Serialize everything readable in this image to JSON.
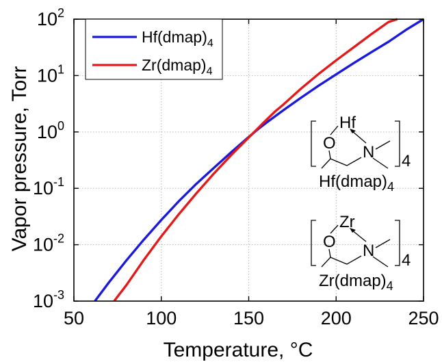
{
  "chart_data": {
    "type": "line",
    "xlabel": "Temperature, ",
    "xlabel_unit": "°C",
    "ylabel": "Vapor pressure, Torr",
    "xlim": [
      50,
      250
    ],
    "ylim": [
      0.001,
      100
    ],
    "yscale": "log",
    "grid": true,
    "legend_position": "top-left",
    "x_ticks": [
      "50",
      "100",
      "150",
      "200",
      "250"
    ],
    "y_ticks": [
      {
        "value": 0.001,
        "base": "10",
        "exp": "-3"
      },
      {
        "value": 0.01,
        "base": "10",
        "exp": "-2"
      },
      {
        "value": 0.1,
        "base": "10",
        "exp": "-1"
      },
      {
        "value": 1,
        "base": "10",
        "exp": "0"
      },
      {
        "value": 10,
        "base": "10",
        "exp": "1"
      },
      {
        "value": 100,
        "base": "10",
        "exp": "2"
      }
    ],
    "series": [
      {
        "name": "Hf(dmap)",
        "name_sub": "4",
        "color": "#1a1adc",
        "x": [
          62,
          70,
          80,
          90,
          100,
          110,
          120,
          130,
          140,
          150,
          155,
          160,
          170,
          180,
          190,
          200,
          210,
          220,
          230,
          240,
          250
        ],
        "y": [
          0.001,
          0.00214,
          0.00525,
          0.0123,
          0.0275,
          0.0589,
          0.12,
          0.229,
          0.437,
          0.813,
          1.1,
          1.45,
          2.45,
          4.07,
          6.61,
          10.5,
          16.6,
          25.7,
          39.8,
          64.6,
          100
        ]
      },
      {
        "name": "Zr(dmap)",
        "name_sub": "4",
        "color": "#e41a1a",
        "x": [
          73,
          80,
          90,
          100,
          110,
          120,
          130,
          140,
          150,
          158,
          165,
          170,
          180,
          190,
          200,
          210,
          220,
          230,
          235
        ],
        "y": [
          0.001,
          0.00191,
          0.00537,
          0.0141,
          0.0347,
          0.0813,
          0.182,
          0.389,
          0.794,
          1.41,
          2.29,
          3.09,
          5.89,
          10.7,
          18.6,
          31.6,
          53.7,
          89.1,
          100
        ]
      }
    ],
    "annotations": {
      "hf_structure": {
        "metal": "Hf",
        "n": "N",
        "o": "O",
        "sub": "4",
        "caption": "Hf(dmap)",
        "caption_sub": "4"
      },
      "zr_structure": {
        "metal": "Zr",
        "n": "N",
        "o": "O",
        "sub": "4",
        "caption": "Zr(dmap)",
        "caption_sub": "4"
      }
    }
  }
}
